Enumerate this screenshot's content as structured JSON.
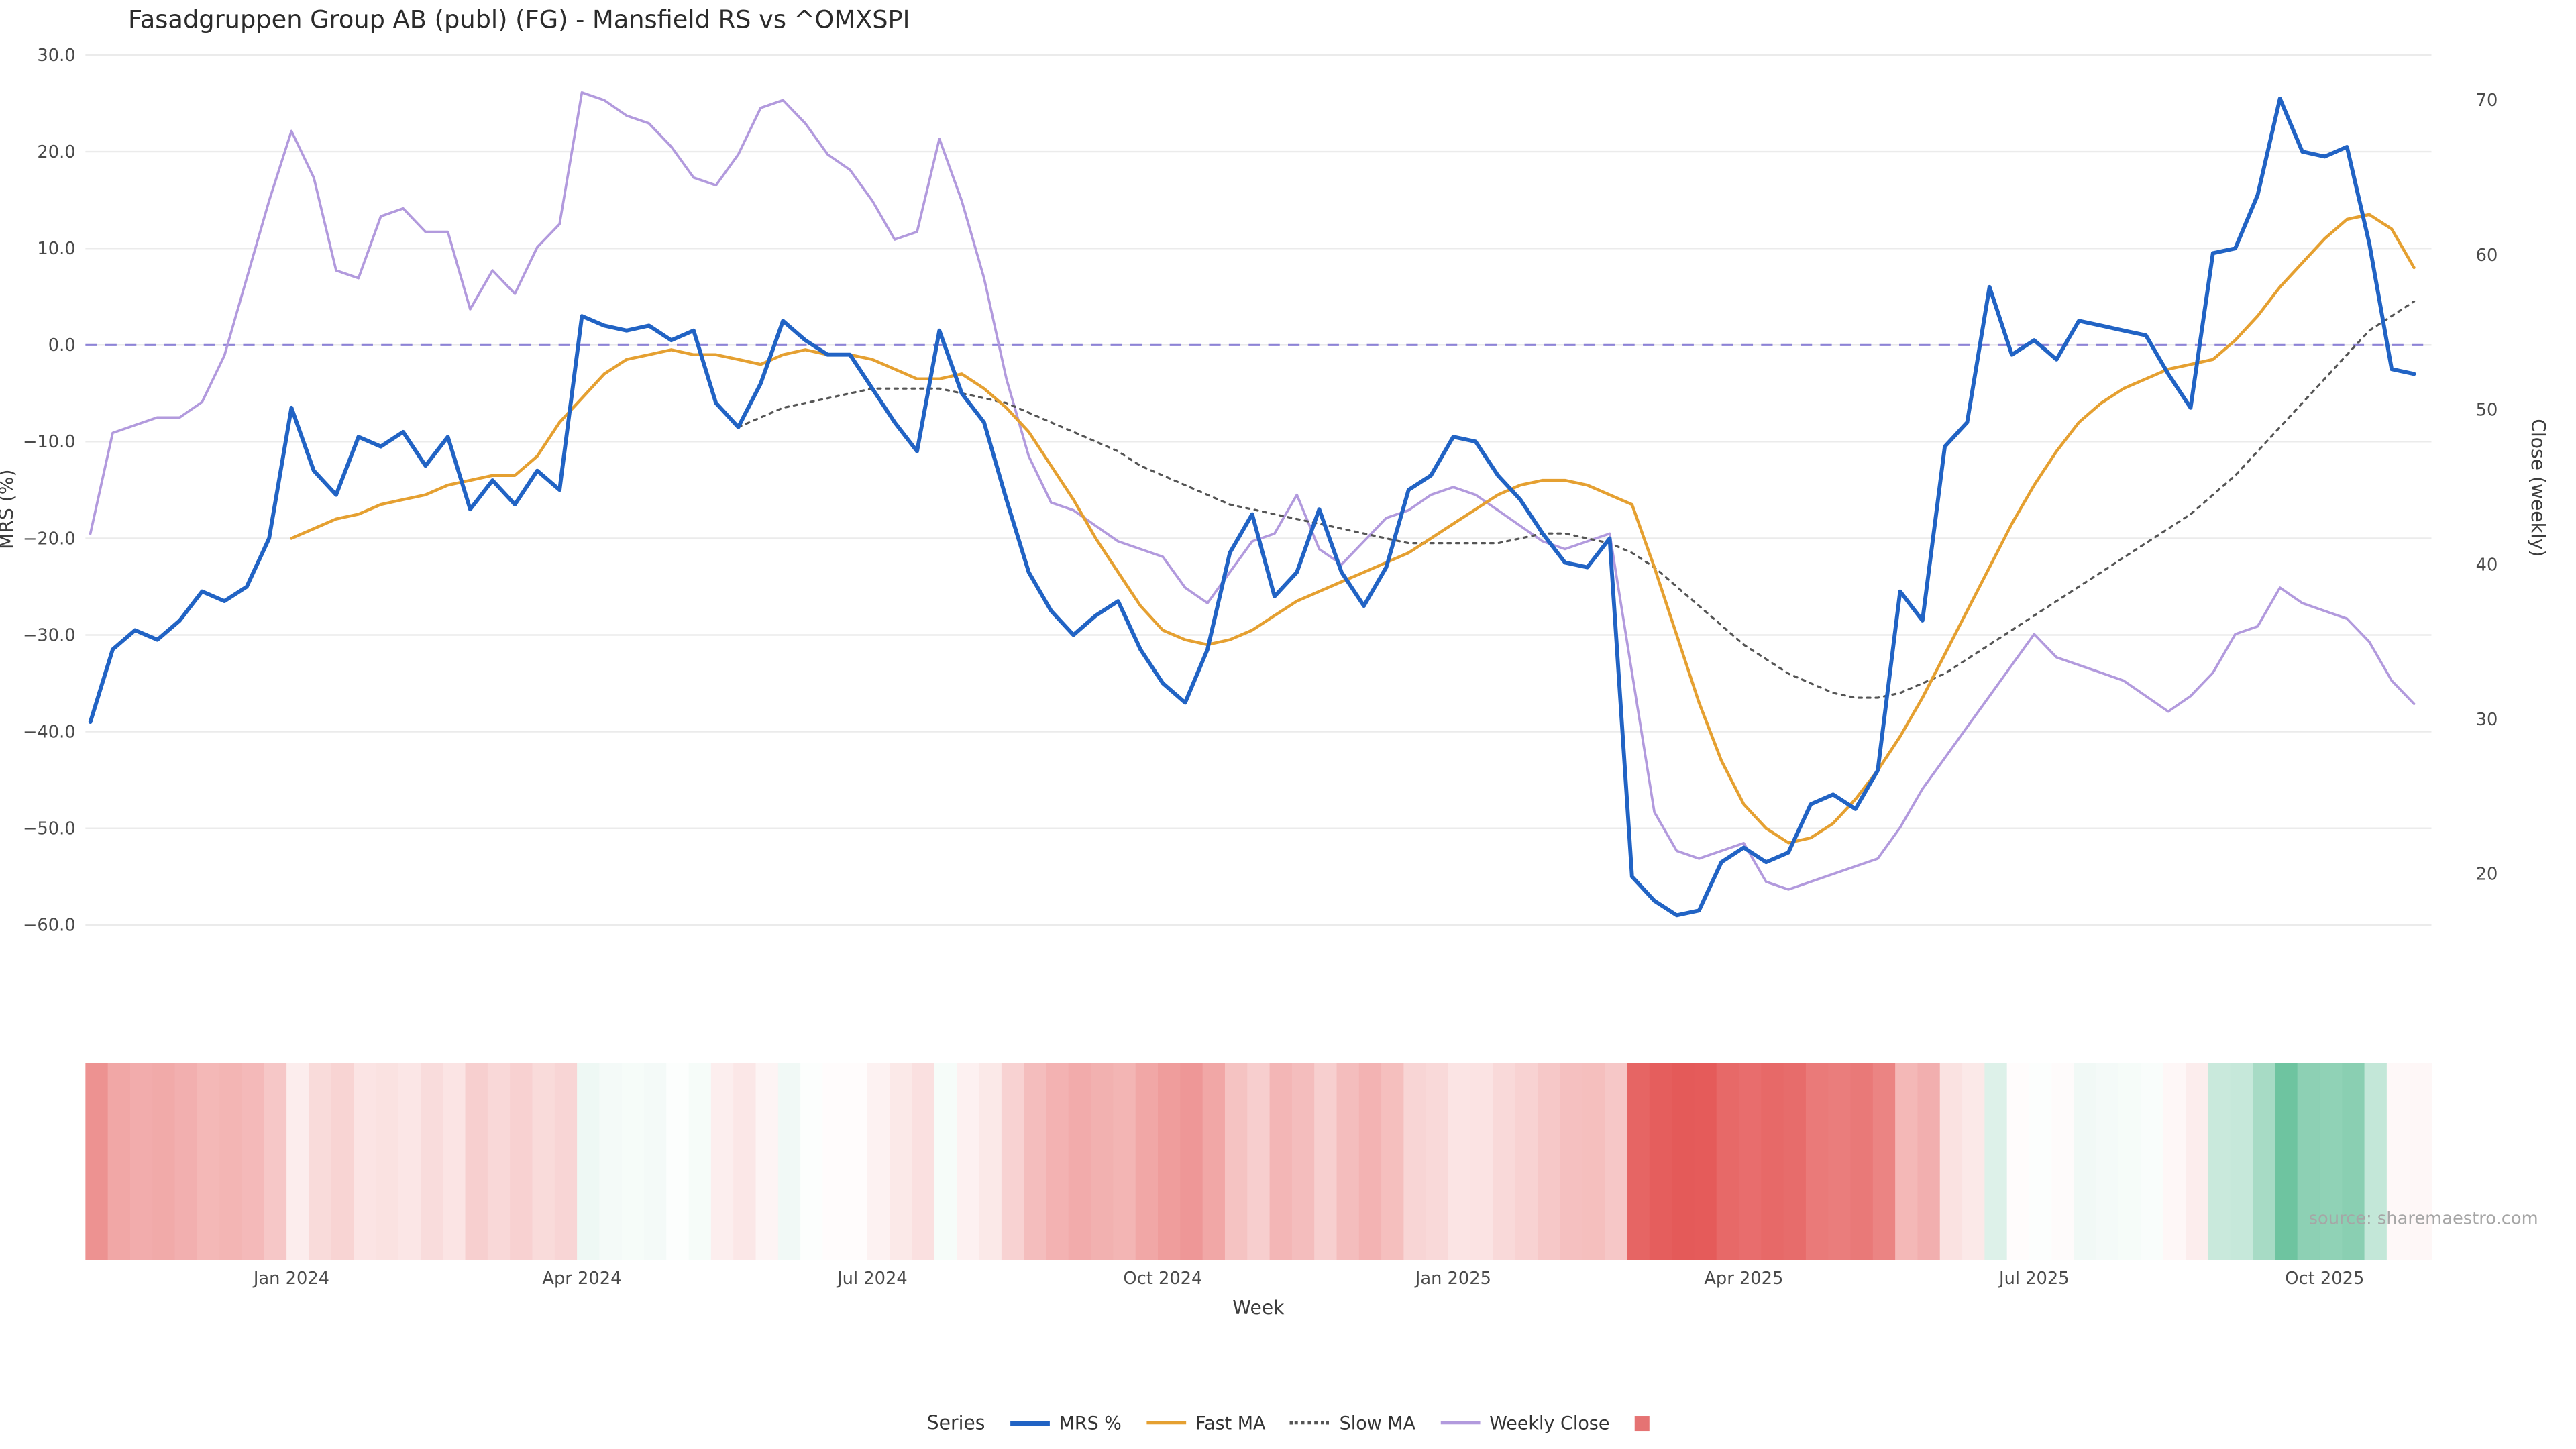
{
  "title": "Fasadgruppen Group AB (publ) (FG) - Mansfield RS vs ^OMXSPI",
  "source": "source: sharemaestro.com",
  "colors": {
    "mrs_line": "#2163c4",
    "fast_ma_line": "#e5a031",
    "slow_ma_line": "#555555",
    "weekly_close_line": "#b29add",
    "zero_line": "#8d83d6",
    "gridline": "#ebebeb",
    "tick_text": "#4a4a4a",
    "heat_negative": "#e45756",
    "heat_zero": "#ffffff",
    "heat_positive": "#54b98f",
    "legend_square": "#e57373"
  },
  "chart_data": {
    "type": "line",
    "grid": true,
    "legend_position": "bottom",
    "x_axis": {
      "label": "Week",
      "ticks": [
        {
          "index": 9,
          "label": "Jan 2024"
        },
        {
          "index": 22,
          "label": "Apr 2024"
        },
        {
          "index": 35,
          "label": "Jul 2024"
        },
        {
          "index": 48,
          "label": "Oct 2024"
        },
        {
          "index": 61,
          "label": "Jan 2025"
        },
        {
          "index": 74,
          "label": "Apr 2025"
        },
        {
          "index": 87,
          "label": "Jul 2025"
        },
        {
          "index": 100,
          "label": "Oct 2025"
        }
      ]
    },
    "left_axis": {
      "label": "MRS (%)",
      "ylim": [
        -65,
        32
      ],
      "ticks": [
        {
          "value": 30,
          "label": "30.0"
        },
        {
          "value": 20,
          "label": "20.0"
        },
        {
          "value": 10,
          "label": "10.0"
        },
        {
          "value": 0,
          "label": "0.0"
        },
        {
          "value": -10,
          "label": "−10.0"
        },
        {
          "value": -20,
          "label": "−20.0"
        },
        {
          "value": -30,
          "label": "−30.0"
        },
        {
          "value": -40,
          "label": "−40.0"
        },
        {
          "value": -50,
          "label": "−50.0"
        },
        {
          "value": -60,
          "label": "−60.0"
        }
      ]
    },
    "right_axis": {
      "label": "Close (weekly)",
      "ylim": [
        17,
        72
      ],
      "ticks": [
        {
          "value": 70,
          "label": "70"
        },
        {
          "value": 60,
          "label": "60"
        },
        {
          "value": 50,
          "label": "50"
        },
        {
          "value": 40,
          "label": "40"
        },
        {
          "value": 30,
          "label": "30"
        },
        {
          "value": 20,
          "label": "20"
        }
      ]
    },
    "zero_line": {
      "value": 0,
      "color": "#8d83d6",
      "dashed": true
    },
    "series": [
      {
        "name": "MRS %",
        "axis": "left",
        "color": "#2163c4",
        "style": "solid",
        "width": 2.4,
        "values": [
          -39,
          -31.5,
          -29.5,
          -30.5,
          -28.5,
          -25.5,
          -26.5,
          -25,
          -20,
          -6.5,
          -13,
          -15.5,
          -9.5,
          -10.5,
          -9,
          -12.5,
          -9.5,
          -17,
          -14,
          -16.5,
          -13,
          -15,
          3,
          2,
          1.5,
          2,
          0.5,
          1.5,
          -6,
          -8.5,
          -4,
          2.5,
          0.5,
          -1,
          -1,
          -4.5,
          -8,
          -11,
          1.5,
          -5,
          -8,
          -16,
          -23.5,
          -27.5,
          -30,
          -28,
          -26.5,
          -31.5,
          -35,
          -37,
          -31.5,
          -21.5,
          -17.5,
          -26,
          -23.5,
          -17,
          -23.5,
          -27,
          -23,
          -15,
          -13.5,
          -9.5,
          -10,
          -13.5,
          -16,
          -19.5,
          -22.5,
          -23,
          -20,
          -55,
          -57.5,
          -59,
          -58.5,
          -53.5,
          -52,
          -53.5,
          -52.5,
          -47.5,
          -46.5,
          -48,
          -44,
          -25.5,
          -28.5,
          -10.5,
          -8,
          6,
          -1,
          0.5,
          -1.5,
          2.5,
          2,
          1.5,
          1,
          -3,
          -6.5,
          9.5,
          10,
          15.5,
          25.5,
          20,
          19.5,
          20.5,
          10.5,
          -2.5,
          -3
        ]
      },
      {
        "name": "Fast MA",
        "axis": "left",
        "color": "#e5a031",
        "style": "solid",
        "width": 1.8,
        "values": [
          null,
          null,
          null,
          null,
          null,
          null,
          null,
          null,
          null,
          -20,
          -19,
          -18,
          -17.5,
          -16.5,
          -16,
          -15.5,
          -14.5,
          -14,
          -13.5,
          -13.5,
          -11.5,
          -8,
          -5.5,
          -3,
          -1.5,
          -1,
          -0.5,
          -1,
          -1,
          -1.5,
          -2,
          -1,
          -0.5,
          -1,
          -1,
          -1.5,
          -2.5,
          -3.5,
          -3.5,
          -3,
          -4.5,
          -6.5,
          -9,
          -12.5,
          -16,
          -20,
          -23.5,
          -27,
          -29.5,
          -30.5,
          -31,
          -30.5,
          -29.5,
          -28,
          -26.5,
          -25.5,
          -24.5,
          -23.5,
          -22.5,
          -21.5,
          -20,
          -18.5,
          -17,
          -15.5,
          -14.5,
          -14,
          -14,
          -14.5,
          -15.5,
          -16.5,
          -23,
          -30,
          -37,
          -43,
          -47.5,
          -50,
          -51.5,
          -51,
          -49.5,
          -47,
          -44,
          -40.5,
          -36.5,
          -32,
          -27.5,
          -23,
          -18.5,
          -14.5,
          -11,
          -8,
          -6,
          -4.5,
          -3.5,
          -2.5,
          -2,
          -1.5,
          0.5,
          3,
          6,
          8.5,
          11,
          13,
          13.5,
          12,
          8
        ]
      },
      {
        "name": "Slow MA",
        "axis": "left",
        "color": "#555555",
        "style": "dotted",
        "width": 1.3,
        "values": [
          null,
          null,
          null,
          null,
          null,
          null,
          null,
          null,
          null,
          null,
          null,
          null,
          null,
          null,
          null,
          null,
          null,
          null,
          null,
          null,
          null,
          null,
          null,
          null,
          null,
          null,
          null,
          null,
          null,
          -8.5,
          -7.5,
          -6.5,
          -6,
          -5.5,
          -5,
          -4.5,
          -4.5,
          -4.5,
          -4.5,
          -5,
          -5.5,
          -6,
          -7,
          -8,
          -9,
          -10,
          -11,
          -12.5,
          -13.5,
          -14.5,
          -15.5,
          -16.5,
          -17,
          -17.5,
          -18,
          -18.5,
          -19,
          -19.5,
          -20,
          -20.5,
          -20.5,
          -20.5,
          -20.5,
          -20.5,
          -20,
          -19.5,
          -19.5,
          -20,
          -20.5,
          -21.5,
          -23,
          -25,
          -27,
          -29,
          -31,
          -32.5,
          -34,
          -35,
          -36,
          -36.5,
          -36.5,
          -36,
          -35,
          -34,
          -32.5,
          -31,
          -29.5,
          -28,
          -26.5,
          -25,
          -23.5,
          -22,
          -20.5,
          -19,
          -17.5,
          -15.5,
          -13.5,
          -11,
          -8.5,
          -6,
          -3.5,
          -1,
          1.5,
          3,
          4.5
        ]
      },
      {
        "name": "Weekly Close",
        "axis": "right",
        "color": "#b29add",
        "style": "solid",
        "width": 1.5,
        "values": [
          42,
          48.5,
          49,
          49.5,
          49.5,
          50.5,
          53.5,
          58.5,
          63.5,
          68,
          65,
          59,
          58.5,
          62.5,
          63,
          61.5,
          61.5,
          56.5,
          59,
          57.5,
          60.5,
          62,
          70.5,
          70,
          69,
          68.5,
          67,
          65,
          64.5,
          66.5,
          69.5,
          70,
          68.5,
          66.5,
          65.5,
          63.5,
          61,
          61.5,
          67.5,
          63.5,
          58.5,
          52,
          47,
          44,
          43.5,
          42.5,
          41.5,
          41,
          40.5,
          38.5,
          37.5,
          39.5,
          41.5,
          42,
          44.5,
          41,
          40,
          41.5,
          43,
          43.5,
          44.5,
          45,
          44.5,
          43.5,
          42.5,
          41.5,
          41,
          41.5,
          42,
          33,
          24,
          21.5,
          21,
          21.5,
          22,
          19.5,
          19,
          19.5,
          20,
          20.5,
          21,
          23,
          25.5,
          27.5,
          29.5,
          31.5,
          33.5,
          35.5,
          34,
          33.5,
          33,
          32.5,
          31.5,
          30.5,
          31.5,
          33,
          35.5,
          36,
          38.5,
          37.5,
          37,
          36.5,
          35,
          32.5,
          31
        ]
      }
    ],
    "heatmap": {
      "derived_from": "MRS %",
      "value_range": [
        -60,
        30
      ],
      "colorscale": {
        "negative": "#e45756",
        "zero": "#ffffff",
        "positive": "#54b98f"
      }
    },
    "legend": {
      "title": "Series",
      "items": [
        {
          "label": "MRS %",
          "swatch": "line",
          "color": "#2163c4",
          "thick": true
        },
        {
          "label": "Fast MA",
          "swatch": "line",
          "color": "#e5a031",
          "thick": false
        },
        {
          "label": "Slow MA",
          "swatch": "dotted-line",
          "color": "#555555",
          "thick": false
        },
        {
          "label": "Weekly Close",
          "swatch": "line",
          "color": "#b29add",
          "thick": false
        },
        {
          "label": "",
          "swatch": "square",
          "color": "#e57373",
          "thick": false
        }
      ]
    }
  }
}
